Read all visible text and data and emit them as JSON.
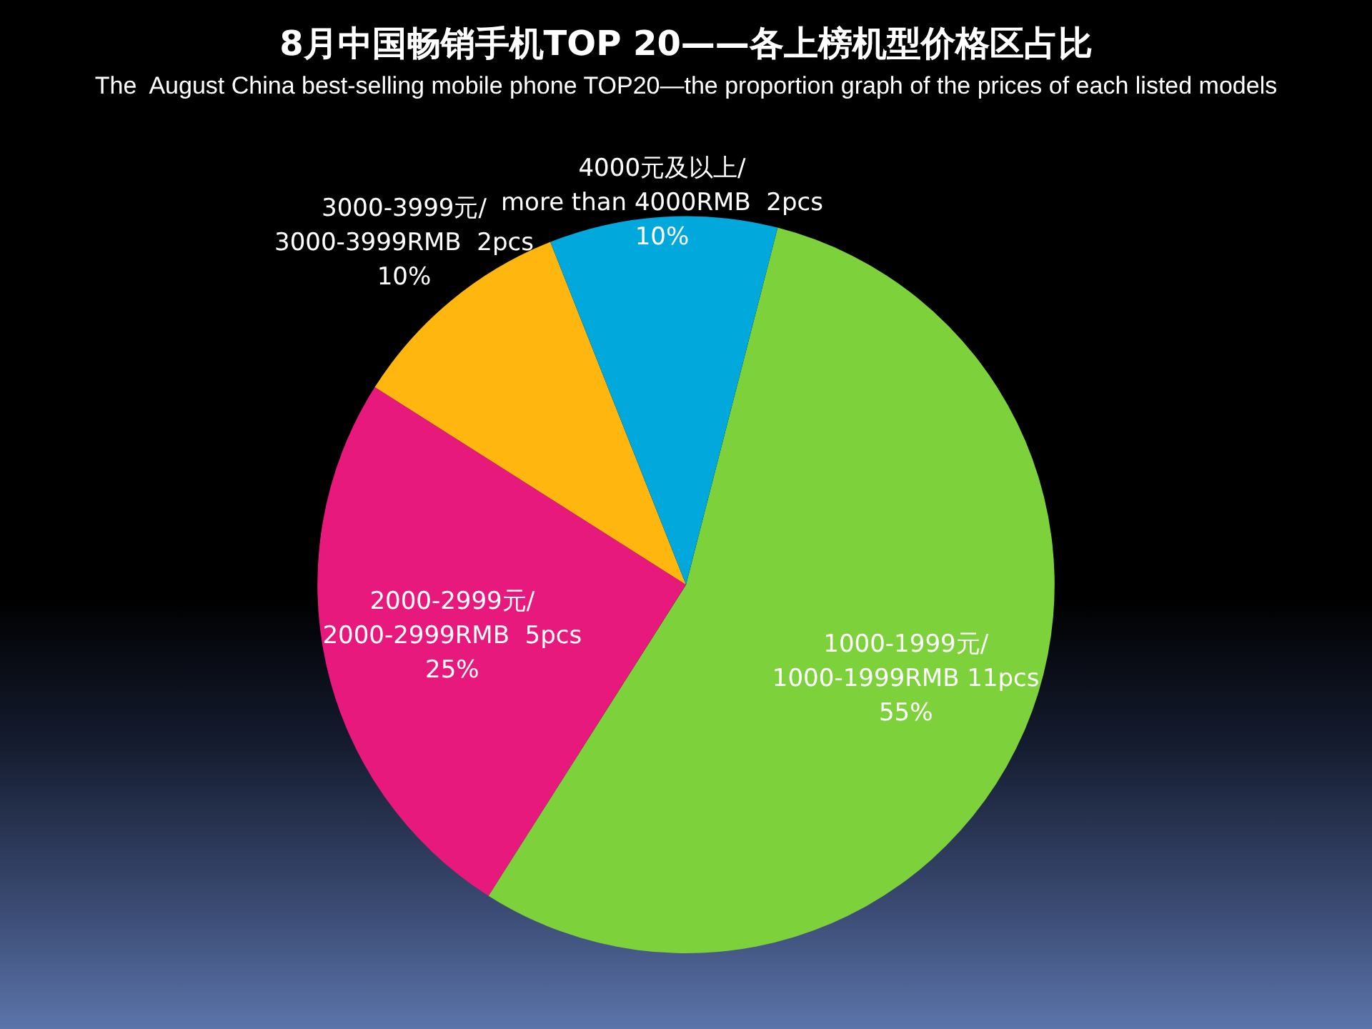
{
  "chart_data": {
    "type": "pie",
    "title": "8月中国畅销手机TOP 20——各上榜机型价格区占比",
    "subtitle": "The  August China best-selling mobile phone TOP20—the proportion graph of the prices of each listed models",
    "categories": [
      "1000-1999元/ 1000-1999RMB 11pcs",
      "2000-2999元/ 2000-2999RMB  5pcs",
      "3000-3999元/ 3000-3999RMB  2pcs",
      "4000元及以上/ more than 4000RMB  2pcs"
    ],
    "values": [
      55,
      25,
      10,
      10
    ],
    "colors": [
      "#7dd13b",
      "#e8197d",
      "#ffb70f",
      "#00a8db"
    ],
    "value_labels": [
      "55%",
      "25%",
      "10%",
      "10%"
    ]
  }
}
